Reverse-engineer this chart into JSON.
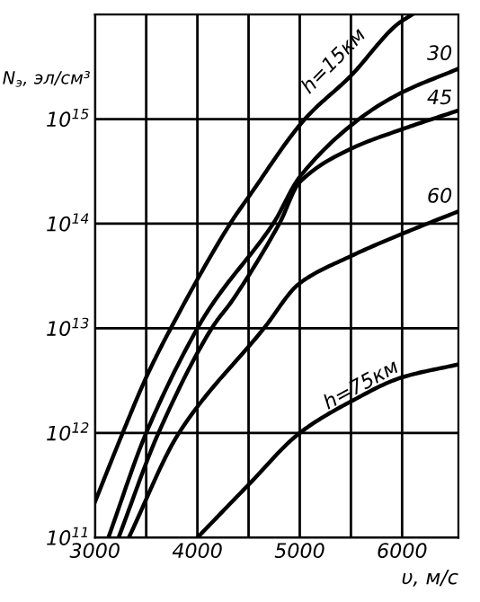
{
  "chart_data": {
    "type": "line",
    "xlabel": "υ, м/с",
    "ylabel": "N$_{э}$, эл/см³",
    "log": true,
    "grid": true,
    "legend": false,
    "marker": "none",
    "line_style": "solid",
    "xlim": [
      3000,
      6550
    ],
    "ylim": [
      100000000000.0,
      1e+16
    ],
    "xticks": [
      3000,
      {
        "value": 3500,
        "label": null
      },
      4000,
      {
        "value": 4500,
        "label": null
      },
      5000,
      {
        "value": 5500,
        "label": null
      },
      6000
    ],
    "yticks": [
      {
        "value": 100000000000.0,
        "label": "10$^{11}$"
      },
      {
        "value": 1000000000000.0,
        "label": "10$^{12}$"
      },
      {
        "value": 10000000000000.0,
        "label": "10$^{13}$"
      },
      {
        "value": 100000000000000.0,
        "label": "10$^{14}$"
      },
      {
        "value": 1000000000000000.0,
        "label": "10$^{15}$"
      }
    ],
    "series": [
      {
        "name": "h=15км",
        "color": "#000000",
        "x": [
          3000,
          3270,
          3500,
          3740,
          4320,
          4500,
          5050,
          5500,
          5950,
          6100
        ],
        "values": [
          220000000000.0,
          1000000000000.0,
          3400000000000.0,
          10000000000000.0,
          100000000000000.0,
          180000000000000.0,
          1000000000000000.0,
          2600000000000000.0,
          8000000000000000.0,
          1e+16
        ]
      },
      {
        "name": "30",
        "color": "#000000",
        "x": [
          3130,
          3500,
          4000,
          4180,
          4740,
          5000,
          5580,
          6000,
          6540
        ],
        "values": [
          100000000000.0,
          1000000000000.0,
          10000000000000.0,
          19000000000000.0,
          100000000000000.0,
          280000000000000.0,
          1000000000000000.0,
          1800000000000000.0,
          3000000000000000.0
        ]
      },
      {
        "name": "45",
        "color": "#000000",
        "x": [
          3230,
          3620,
          4140,
          4350,
          4800,
          5000,
          5500,
          6000,
          6540
        ],
        "values": [
          100000000000.0,
          1000000000000.0,
          10000000000000.0,
          19000000000000.0,
          100000000000000.0,
          250000000000000.0,
          520000000000000.0,
          800000000000000.0,
          1200000000000000.0
        ]
      },
      {
        "name": "60",
        "color": "#000000",
        "x": [
          3330,
          3820,
          4650,
          5000,
          5500,
          6000,
          6540
        ],
        "values": [
          100000000000.0,
          1000000000000.0,
          10000000000000.0,
          27000000000000.0,
          49000000000000.0,
          80000000000000.0,
          130000000000000.0
        ]
      },
      {
        "name": "h=75км",
        "color": "#000000",
        "x": [
          4000,
          4500,
          5000,
          5500,
          6000,
          6540
        ],
        "values": [
          100000000000.0,
          320000000000.0,
          1000000000000.0,
          2000000000000.0,
          3400000000000.0,
          4500000000000.0
        ]
      }
    ]
  }
}
